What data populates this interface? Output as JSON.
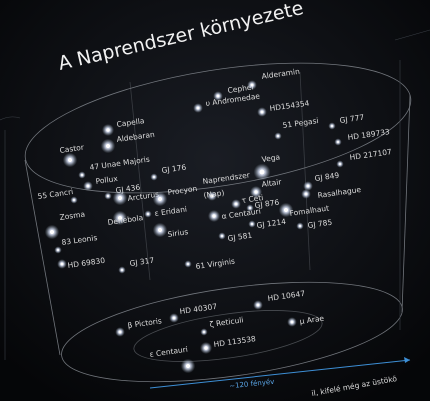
{
  "title": "A Naprendszer környezete",
  "labels": [
    "Cephei",
    "Alderamin",
    "υ Andromedae",
    "HD154354",
    "Capella",
    "Aldebaran",
    "Castor",
    "51 Pegasi",
    "GJ 777",
    "HD 189733",
    "HD 217107",
    "47 Unae Majoris",
    "Pollux",
    "55 Cancri",
    "GJ 436",
    "GJ 176",
    "Vega",
    "Arcturus",
    "Procyon",
    "Naprendszer",
    "(Nap)",
    "Altair",
    "GJ 849",
    "Rasalhague",
    "Zosma",
    "Denebola",
    "ε Eridani",
    "τ Ceti",
    "α Centauri",
    "GJ 876",
    "Fomalhaut",
    "Sirius",
    "GJ 581",
    "GJ 1214",
    "GJ 785",
    "83 Leonis",
    "HD 69830",
    "GJ 317",
    "61 Virginis",
    "HD 40307",
    "HD 10647",
    "β Pictoris",
    "ζ Reticuli",
    "μ Arae",
    "HD 113538",
    "ε Centauri"
  ],
  "scale_label": "~120 fényév",
  "caption_fragment": "il, kifelé még az üstökö"
}
